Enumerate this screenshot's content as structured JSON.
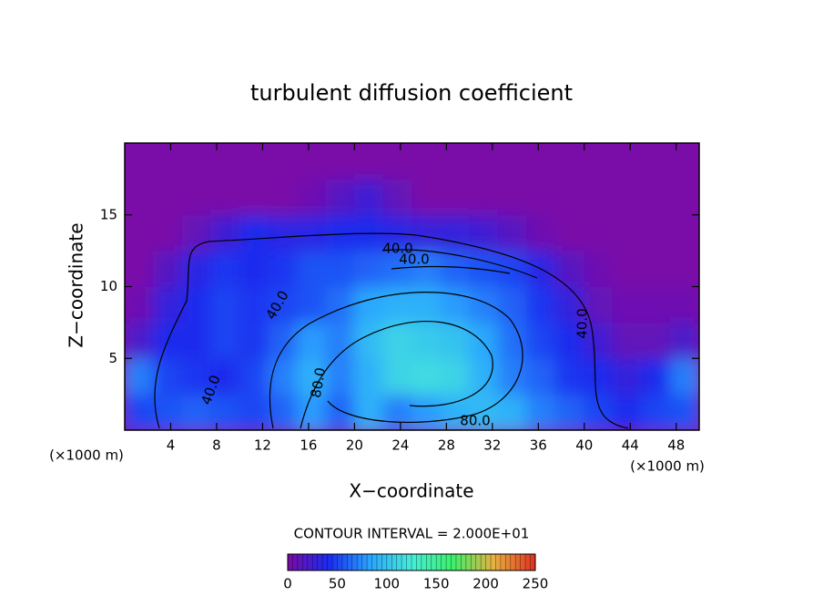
{
  "chart_data": {
    "type": "heatmap",
    "title": "turbulent diffusion coefficient",
    "x_label": "X−coordinate",
    "y_label": "Z−coordinate",
    "x_unit": "(×1000 m)",
    "x_unit_right": "(×1000 m)",
    "xlim": [
      0,
      50
    ],
    "ylim": [
      0,
      20
    ],
    "xticks": [
      4,
      8,
      12,
      16,
      20,
      24,
      28,
      32,
      36,
      40,
      44,
      48
    ],
    "yticks": [
      5,
      10,
      15
    ],
    "x": [
      1.25,
      3.75,
      6.25,
      8.75,
      11.25,
      13.75,
      16.25,
      18.75,
      21.25,
      23.75,
      26.25,
      28.75,
      31.25,
      33.75,
      36.25,
      38.75,
      41.25,
      43.75,
      46.25,
      48.75
    ],
    "y": [
      1.25,
      3.75,
      6.25,
      8.75,
      11.25,
      13.75,
      16.25,
      18.75
    ],
    "z": [
      [
        50,
        55,
        60,
        55,
        50,
        60,
        80,
        60,
        90,
        70,
        80,
        90,
        95,
        90,
        70,
        60,
        50,
        40,
        50,
        55
      ],
      [
        70,
        50,
        45,
        40,
        50,
        70,
        90,
        70,
        90,
        110,
        115,
        110,
        90,
        70,
        60,
        45,
        40,
        30,
        40,
        70
      ],
      [
        20,
        40,
        40,
        50,
        45,
        60,
        80,
        70,
        95,
        110,
        105,
        100,
        85,
        65,
        50,
        40,
        25,
        10,
        10,
        20
      ],
      [
        5,
        30,
        40,
        50,
        45,
        50,
        55,
        65,
        85,
        90,
        90,
        80,
        70,
        60,
        45,
        30,
        10,
        5,
        5,
        5
      ],
      [
        0,
        15,
        35,
        45,
        40,
        45,
        55,
        55,
        60,
        65,
        70,
        60,
        55,
        50,
        35,
        15,
        5,
        0,
        0,
        0
      ],
      [
        0,
        0,
        10,
        25,
        40,
        35,
        35,
        40,
        40,
        35,
        30,
        30,
        25,
        15,
        5,
        0,
        0,
        0,
        0,
        0
      ],
      [
        0,
        0,
        0,
        0,
        0,
        0,
        5,
        15,
        25,
        10,
        0,
        0,
        0,
        0,
        0,
        0,
        0,
        0,
        0,
        0
      ],
      [
        0,
        0,
        0,
        0,
        0,
        0,
        0,
        0,
        0,
        0,
        0,
        0,
        0,
        0,
        0,
        0,
        0,
        0,
        0,
        0
      ]
    ],
    "contour_labels": [
      "40.0",
      "40.0",
      "40.0",
      "40.0",
      "40.0",
      "80.0",
      "80.0"
    ],
    "contour_interval_label": "CONTOUR INTERVAL = 2.000E+01",
    "clim": [
      0,
      250
    ],
    "colorbar_ticks": [
      0,
      50,
      100,
      150,
      200,
      250
    ],
    "colors": [
      "#7a0aa8",
      "#1a2cf0",
      "#2aa6ff",
      "#46ecd8",
      "#3cf06a",
      "#e8b040",
      "#e03020"
    ]
  }
}
